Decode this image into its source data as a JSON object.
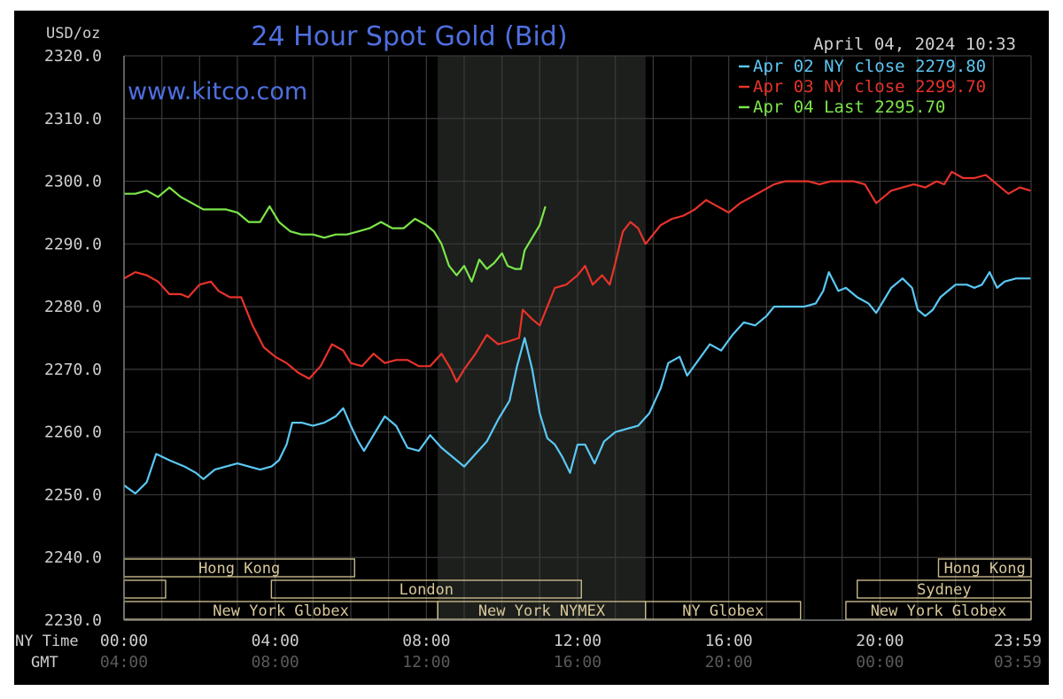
{
  "chart_data": {
    "type": "line",
    "title": "24 Hour Spot Gold (Bid)",
    "watermark": "www.kitco.com",
    "timestamp": "April 04, 2024 10:33",
    "ylabel": "USD/oz",
    "ylim": [
      2230,
      2320
    ],
    "y_ticks": [
      "2320.0",
      "2310.0",
      "2300.0",
      "2290.0",
      "2280.0",
      "2270.0",
      "2260.0",
      "2250.0",
      "2240.0",
      "2230.0"
    ],
    "xlim": [
      0,
      24
    ],
    "x_ticks_hours": [
      0,
      4,
      8,
      12,
      16,
      20,
      23.983
    ],
    "x_row_ny_label": "NY Time",
    "x_row_gmt_label": "GMT",
    "x_ticks_ny": [
      "00:00",
      "04:00",
      "08:00",
      "12:00",
      "16:00",
      "20:00",
      "23:59"
    ],
    "x_ticks_gmt": [
      "04:00",
      "08:00",
      "12:00",
      "16:00",
      "20:00",
      "00:00",
      "03:59"
    ],
    "grid": true,
    "highlight_band": [
      8.3,
      13.8
    ],
    "legend_position": "top-right",
    "colors": {
      "background": "#000000",
      "grid": "#3a3a3a",
      "band": "#1c1f1c",
      "text": "#d0d0d0",
      "title": "#4f6fe0",
      "session_border": "#c8b98a",
      "session_text": "#d8c89a"
    },
    "series": [
      {
        "name": "Apr 02",
        "legend": "Apr 02 NY close 2279.80",
        "color": "#5bc8f5",
        "points": [
          [
            0,
            2251.5
          ],
          [
            0.3,
            2250.2
          ],
          [
            0.6,
            2252.0
          ],
          [
            0.85,
            2256.5
          ],
          [
            1.2,
            2255.5
          ],
          [
            1.6,
            2254.5
          ],
          [
            1.9,
            2253.5
          ],
          [
            2.1,
            2252.5
          ],
          [
            2.4,
            2254.0
          ],
          [
            2.7,
            2254.5
          ],
          [
            3.0,
            2255.0
          ],
          [
            3.3,
            2254.5
          ],
          [
            3.6,
            2254.0
          ],
          [
            3.9,
            2254.5
          ],
          [
            4.1,
            2255.5
          ],
          [
            4.3,
            2258.0
          ],
          [
            4.45,
            2261.5
          ],
          [
            4.7,
            2261.5
          ],
          [
            5.0,
            2261.0
          ],
          [
            5.3,
            2261.5
          ],
          [
            5.6,
            2262.5
          ],
          [
            5.8,
            2263.8
          ],
          [
            6.0,
            2261.0
          ],
          [
            6.2,
            2258.5
          ],
          [
            6.35,
            2257.0
          ],
          [
            6.6,
            2259.5
          ],
          [
            6.9,
            2262.5
          ],
          [
            7.2,
            2261.0
          ],
          [
            7.5,
            2257.5
          ],
          [
            7.8,
            2257.0
          ],
          [
            8.1,
            2259.5
          ],
          [
            8.4,
            2257.5
          ],
          [
            8.7,
            2256.0
          ],
          [
            9.0,
            2254.5
          ],
          [
            9.3,
            2256.5
          ],
          [
            9.6,
            2258.5
          ],
          [
            9.9,
            2262.0
          ],
          [
            10.2,
            2265.0
          ],
          [
            10.4,
            2270.5
          ],
          [
            10.6,
            2275.0
          ],
          [
            10.8,
            2270.0
          ],
          [
            11.0,
            2263.0
          ],
          [
            11.2,
            2259.0
          ],
          [
            11.4,
            2258.0
          ],
          [
            11.6,
            2256.0
          ],
          [
            11.8,
            2253.5
          ],
          [
            12.0,
            2258.0
          ],
          [
            12.2,
            2258.0
          ],
          [
            12.45,
            2255.0
          ],
          [
            12.7,
            2258.5
          ],
          [
            13.0,
            2260.0
          ],
          [
            13.3,
            2260.5
          ],
          [
            13.6,
            2261.0
          ],
          [
            13.9,
            2263.0
          ],
          [
            14.2,
            2267.0
          ],
          [
            14.4,
            2271.0
          ],
          [
            14.7,
            2272.0
          ],
          [
            14.9,
            2269.0
          ],
          [
            15.2,
            2271.5
          ],
          [
            15.5,
            2274.0
          ],
          [
            15.8,
            2273.0
          ],
          [
            16.1,
            2275.5
          ],
          [
            16.4,
            2277.5
          ],
          [
            16.7,
            2277.0
          ],
          [
            17.0,
            2278.5
          ],
          [
            17.2,
            2280.0
          ],
          [
            17.6,
            2280.0
          ],
          [
            18.0,
            2280.0
          ],
          [
            18.3,
            2280.5
          ],
          [
            18.5,
            2282.5
          ],
          [
            18.65,
            2285.5
          ],
          [
            18.9,
            2282.5
          ],
          [
            19.1,
            2283.0
          ],
          [
            19.4,
            2281.5
          ],
          [
            19.7,
            2280.5
          ],
          [
            19.9,
            2279.0
          ],
          [
            20.1,
            2281.0
          ],
          [
            20.3,
            2283.0
          ],
          [
            20.6,
            2284.5
          ],
          [
            20.85,
            2283.0
          ],
          [
            21.0,
            2279.5
          ],
          [
            21.2,
            2278.5
          ],
          [
            21.4,
            2279.5
          ],
          [
            21.6,
            2281.5
          ],
          [
            21.8,
            2282.5
          ],
          [
            22.0,
            2283.5
          ],
          [
            22.3,
            2283.5
          ],
          [
            22.5,
            2283.0
          ],
          [
            22.7,
            2283.5
          ],
          [
            22.9,
            2285.5
          ],
          [
            23.1,
            2283.0
          ],
          [
            23.3,
            2284.0
          ],
          [
            23.6,
            2284.5
          ],
          [
            23.983,
            2284.5
          ]
        ]
      },
      {
        "name": "Apr 03",
        "legend": "Apr 03 NY close 2299.70",
        "color": "#e8332a",
        "points": [
          [
            0,
            2284.5
          ],
          [
            0.3,
            2285.5
          ],
          [
            0.6,
            2285.0
          ],
          [
            0.9,
            2284.0
          ],
          [
            1.2,
            2282.0
          ],
          [
            1.5,
            2282.0
          ],
          [
            1.7,
            2281.5
          ],
          [
            2.0,
            2283.5
          ],
          [
            2.3,
            2284.0
          ],
          [
            2.5,
            2282.5
          ],
          [
            2.8,
            2281.5
          ],
          [
            3.1,
            2281.5
          ],
          [
            3.4,
            2277.0
          ],
          [
            3.7,
            2273.5
          ],
          [
            4.0,
            2272.0
          ],
          [
            4.3,
            2271.0
          ],
          [
            4.6,
            2269.5
          ],
          [
            4.9,
            2268.5
          ],
          [
            5.2,
            2270.5
          ],
          [
            5.5,
            2274.0
          ],
          [
            5.8,
            2273.0
          ],
          [
            6.0,
            2271.0
          ],
          [
            6.3,
            2270.5
          ],
          [
            6.6,
            2272.5
          ],
          [
            6.9,
            2271.0
          ],
          [
            7.2,
            2271.5
          ],
          [
            7.5,
            2271.5
          ],
          [
            7.8,
            2270.5
          ],
          [
            8.1,
            2270.5
          ],
          [
            8.4,
            2272.5
          ],
          [
            8.65,
            2270.0
          ],
          [
            8.8,
            2268.0
          ],
          [
            9.0,
            2270.0
          ],
          [
            9.3,
            2272.5
          ],
          [
            9.6,
            2275.5
          ],
          [
            9.9,
            2274.0
          ],
          [
            10.2,
            2274.5
          ],
          [
            10.45,
            2275.0
          ],
          [
            10.55,
            2279.5
          ],
          [
            10.8,
            2278.0
          ],
          [
            11.0,
            2277.0
          ],
          [
            11.2,
            2280.0
          ],
          [
            11.4,
            2283.0
          ],
          [
            11.7,
            2283.5
          ],
          [
            12.0,
            2285.0
          ],
          [
            12.2,
            2286.5
          ],
          [
            12.4,
            2283.5
          ],
          [
            12.65,
            2285.0
          ],
          [
            12.85,
            2283.5
          ],
          [
            13.0,
            2287.0
          ],
          [
            13.2,
            2292.0
          ],
          [
            13.4,
            2293.5
          ],
          [
            13.6,
            2292.5
          ],
          [
            13.8,
            2290.0
          ],
          [
            14.0,
            2291.5
          ],
          [
            14.2,
            2293.0
          ],
          [
            14.5,
            2294.0
          ],
          [
            14.8,
            2294.5
          ],
          [
            15.1,
            2295.5
          ],
          [
            15.4,
            2297.0
          ],
          [
            15.7,
            2296.0
          ],
          [
            16.0,
            2295.0
          ],
          [
            16.3,
            2296.5
          ],
          [
            16.6,
            2297.5
          ],
          [
            16.9,
            2298.5
          ],
          [
            17.2,
            2299.5
          ],
          [
            17.5,
            2300.0
          ],
          [
            17.8,
            2300.0
          ],
          [
            18.1,
            2300.0
          ],
          [
            18.4,
            2299.5
          ],
          [
            18.7,
            2300.0
          ],
          [
            19.0,
            2300.0
          ],
          [
            19.3,
            2300.0
          ],
          [
            19.6,
            2299.5
          ],
          [
            19.9,
            2296.5
          ],
          [
            20.1,
            2297.5
          ],
          [
            20.3,
            2298.5
          ],
          [
            20.6,
            2299.0
          ],
          [
            20.9,
            2299.5
          ],
          [
            21.2,
            2299.0
          ],
          [
            21.5,
            2300.0
          ],
          [
            21.7,
            2299.5
          ],
          [
            21.9,
            2301.5
          ],
          [
            22.2,
            2300.5
          ],
          [
            22.5,
            2300.5
          ],
          [
            22.8,
            2301.0
          ],
          [
            23.1,
            2299.5
          ],
          [
            23.4,
            2298.0
          ],
          [
            23.7,
            2299.0
          ],
          [
            23.983,
            2298.5
          ]
        ]
      },
      {
        "name": "Apr 04",
        "legend": "Apr 04 Last 2295.70",
        "color": "#7be64a",
        "points": [
          [
            0,
            2298.0
          ],
          [
            0.3,
            2298.0
          ],
          [
            0.6,
            2298.5
          ],
          [
            0.9,
            2297.5
          ],
          [
            1.2,
            2299.0
          ],
          [
            1.5,
            2297.5
          ],
          [
            1.8,
            2296.5
          ],
          [
            2.1,
            2295.5
          ],
          [
            2.4,
            2295.5
          ],
          [
            2.7,
            2295.5
          ],
          [
            3.0,
            2295.0
          ],
          [
            3.3,
            2293.5
          ],
          [
            3.6,
            2293.5
          ],
          [
            3.85,
            2296.0
          ],
          [
            4.1,
            2293.5
          ],
          [
            4.4,
            2292.0
          ],
          [
            4.7,
            2291.5
          ],
          [
            5.0,
            2291.5
          ],
          [
            5.3,
            2291.0
          ],
          [
            5.6,
            2291.5
          ],
          [
            5.9,
            2291.5
          ],
          [
            6.2,
            2292.0
          ],
          [
            6.5,
            2292.5
          ],
          [
            6.8,
            2293.5
          ],
          [
            7.1,
            2292.5
          ],
          [
            7.4,
            2292.5
          ],
          [
            7.7,
            2294.0
          ],
          [
            8.0,
            2293.0
          ],
          [
            8.2,
            2292.0
          ],
          [
            8.4,
            2290.0
          ],
          [
            8.6,
            2286.5
          ],
          [
            8.8,
            2285.0
          ],
          [
            9.0,
            2286.5
          ],
          [
            9.2,
            2284.0
          ],
          [
            9.4,
            2287.5
          ],
          [
            9.6,
            2286.0
          ],
          [
            9.8,
            2287.0
          ],
          [
            10.0,
            2288.5
          ],
          [
            10.15,
            2286.5
          ],
          [
            10.35,
            2286.0
          ],
          [
            10.5,
            2286.0
          ],
          [
            10.6,
            2289.0
          ],
          [
            10.8,
            2291.0
          ],
          [
            11.0,
            2293.0
          ],
          [
            11.15,
            2296.0
          ]
        ]
      }
    ],
    "sessions": [
      {
        "label": "Hong Kong",
        "start": 0,
        "end": 6.1,
        "row": 0,
        "show_label": true
      },
      {
        "label": "Hong Kong",
        "start": 21.55,
        "end": 24,
        "row": 0,
        "show_label": true
      },
      {
        "label": "London",
        "start": 0,
        "end": 1.1,
        "row": 1,
        "show_label": false
      },
      {
        "label": "London",
        "start": 3.9,
        "end": 12.1,
        "row": 1,
        "show_label": true
      },
      {
        "label": "Sydney",
        "start": 19.4,
        "end": 24,
        "row": 1,
        "show_label": true
      },
      {
        "label": "New York Globex",
        "start": 0,
        "end": 8.3,
        "row": 2,
        "show_label": true
      },
      {
        "label": "New York NYMEX",
        "start": 8.3,
        "end": 13.8,
        "row": 2,
        "show_label": true
      },
      {
        "label": "NY Globex",
        "start": 13.8,
        "end": 17.9,
        "row": 2,
        "show_label": true
      },
      {
        "label": "New York Globex",
        "start": 19.1,
        "end": 24,
        "row": 2,
        "show_label": true
      }
    ]
  }
}
